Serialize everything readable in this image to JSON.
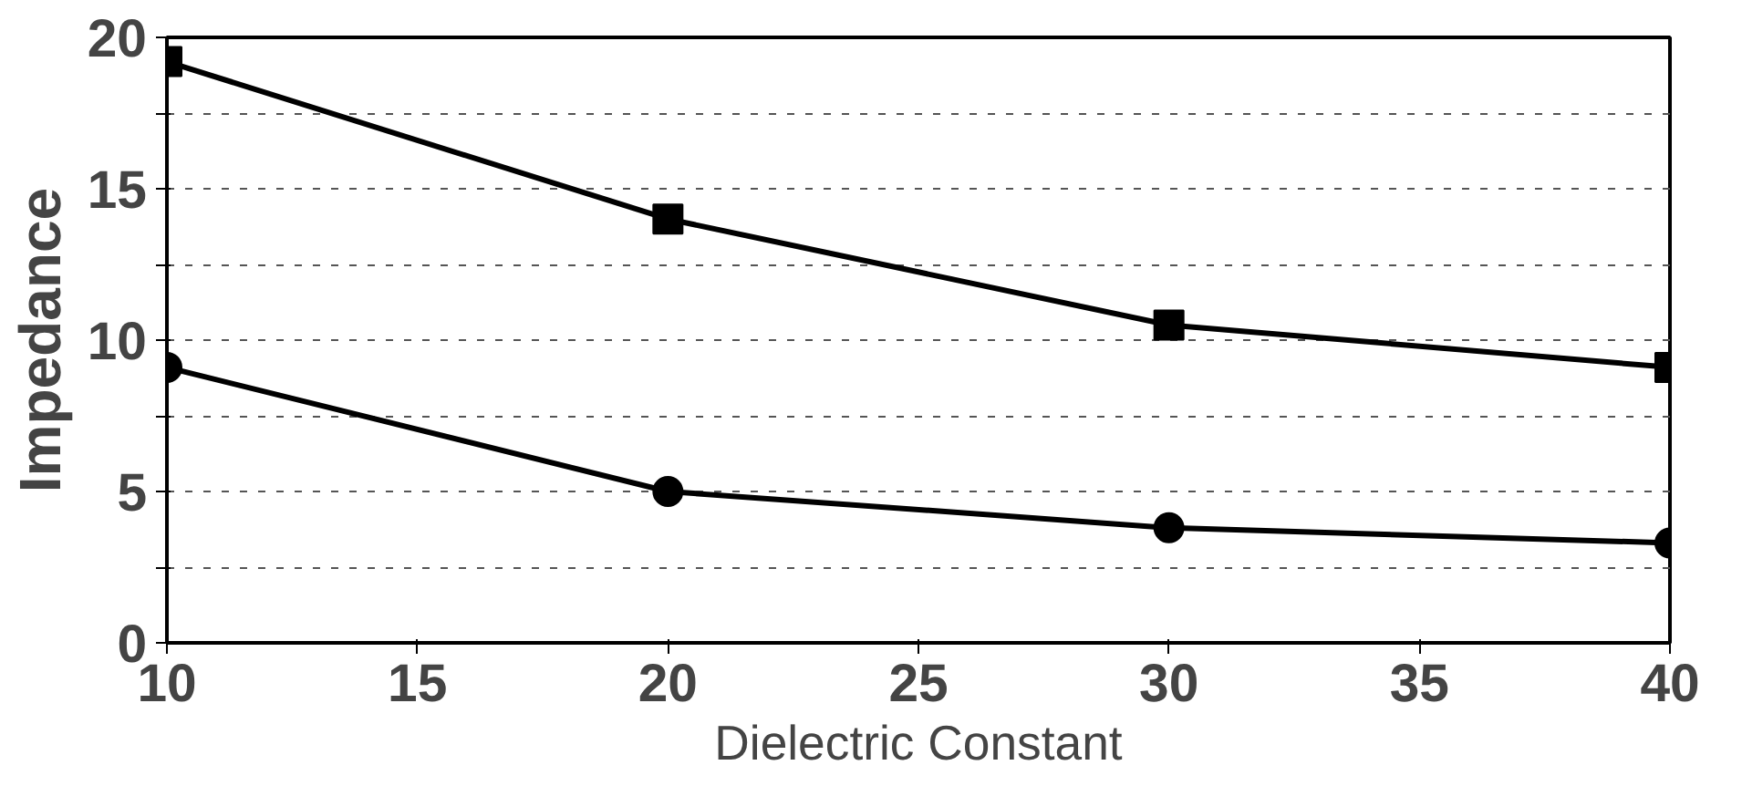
{
  "chart_data": {
    "type": "line",
    "xlabel": "Dielectric Constant",
    "ylabel": "Impedance",
    "x": [
      10,
      20,
      30,
      40
    ],
    "series": [
      {
        "color": "#000000",
        "marker": "square",
        "values": [
          19.2,
          14.0,
          10.5,
          9.1
        ]
      },
      {
        "color": "#000000",
        "marker": "circle",
        "values": [
          9.1,
          5.0,
          3.8,
          3.3
        ]
      }
    ],
    "xlim": [
      10,
      40
    ],
    "xticks": [
      10,
      15,
      20,
      25,
      30,
      35,
      40
    ],
    "ylim": [
      0,
      20
    ],
    "yticks": [
      0,
      {
        "value": 2.5,
        "label": null
      },
      5,
      {
        "value": 7.5,
        "label": null
      },
      10,
      {
        "value": 12.5,
        "label": null
      },
      15,
      {
        "value": 17.5,
        "label": null
      },
      20
    ],
    "grid": "y",
    "line_style": "solid"
  }
}
